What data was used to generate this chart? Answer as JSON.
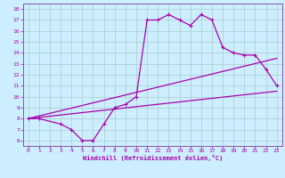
{
  "xlabel": "Windchill (Refroidissement éolien,°C)",
  "bg_color": "#cceeff",
  "line_color": "#aa00aa",
  "grid_color": "#aacccc",
  "axis_color": "#8855aa",
  "xlim": [
    -0.5,
    23.5
  ],
  "ylim": [
    5.5,
    18.5
  ],
  "xticks": [
    0,
    1,
    2,
    3,
    4,
    5,
    6,
    7,
    8,
    9,
    10,
    11,
    12,
    13,
    14,
    15,
    16,
    17,
    18,
    19,
    20,
    21,
    22,
    23
  ],
  "yticks": [
    6,
    7,
    8,
    9,
    10,
    11,
    12,
    13,
    14,
    15,
    16,
    17,
    18
  ],
  "line1_x": [
    0,
    1,
    3,
    4,
    5,
    6,
    7,
    8,
    9,
    10,
    11,
    12,
    13,
    14,
    15,
    16,
    17,
    18,
    19,
    20,
    21,
    22,
    23
  ],
  "line1_y": [
    8,
    8,
    7.5,
    7,
    6,
    6,
    7.5,
    9,
    9.3,
    10,
    17,
    17,
    17.5,
    17,
    16.5,
    17.5,
    17,
    14.5,
    14,
    13.8,
    13.8,
    12.5,
    11
  ],
  "line2_x": [
    0,
    23
  ],
  "line2_y": [
    8.0,
    13.5
  ],
  "line3_x": [
    0,
    23
  ],
  "line3_y": [
    8.0,
    10.5
  ]
}
